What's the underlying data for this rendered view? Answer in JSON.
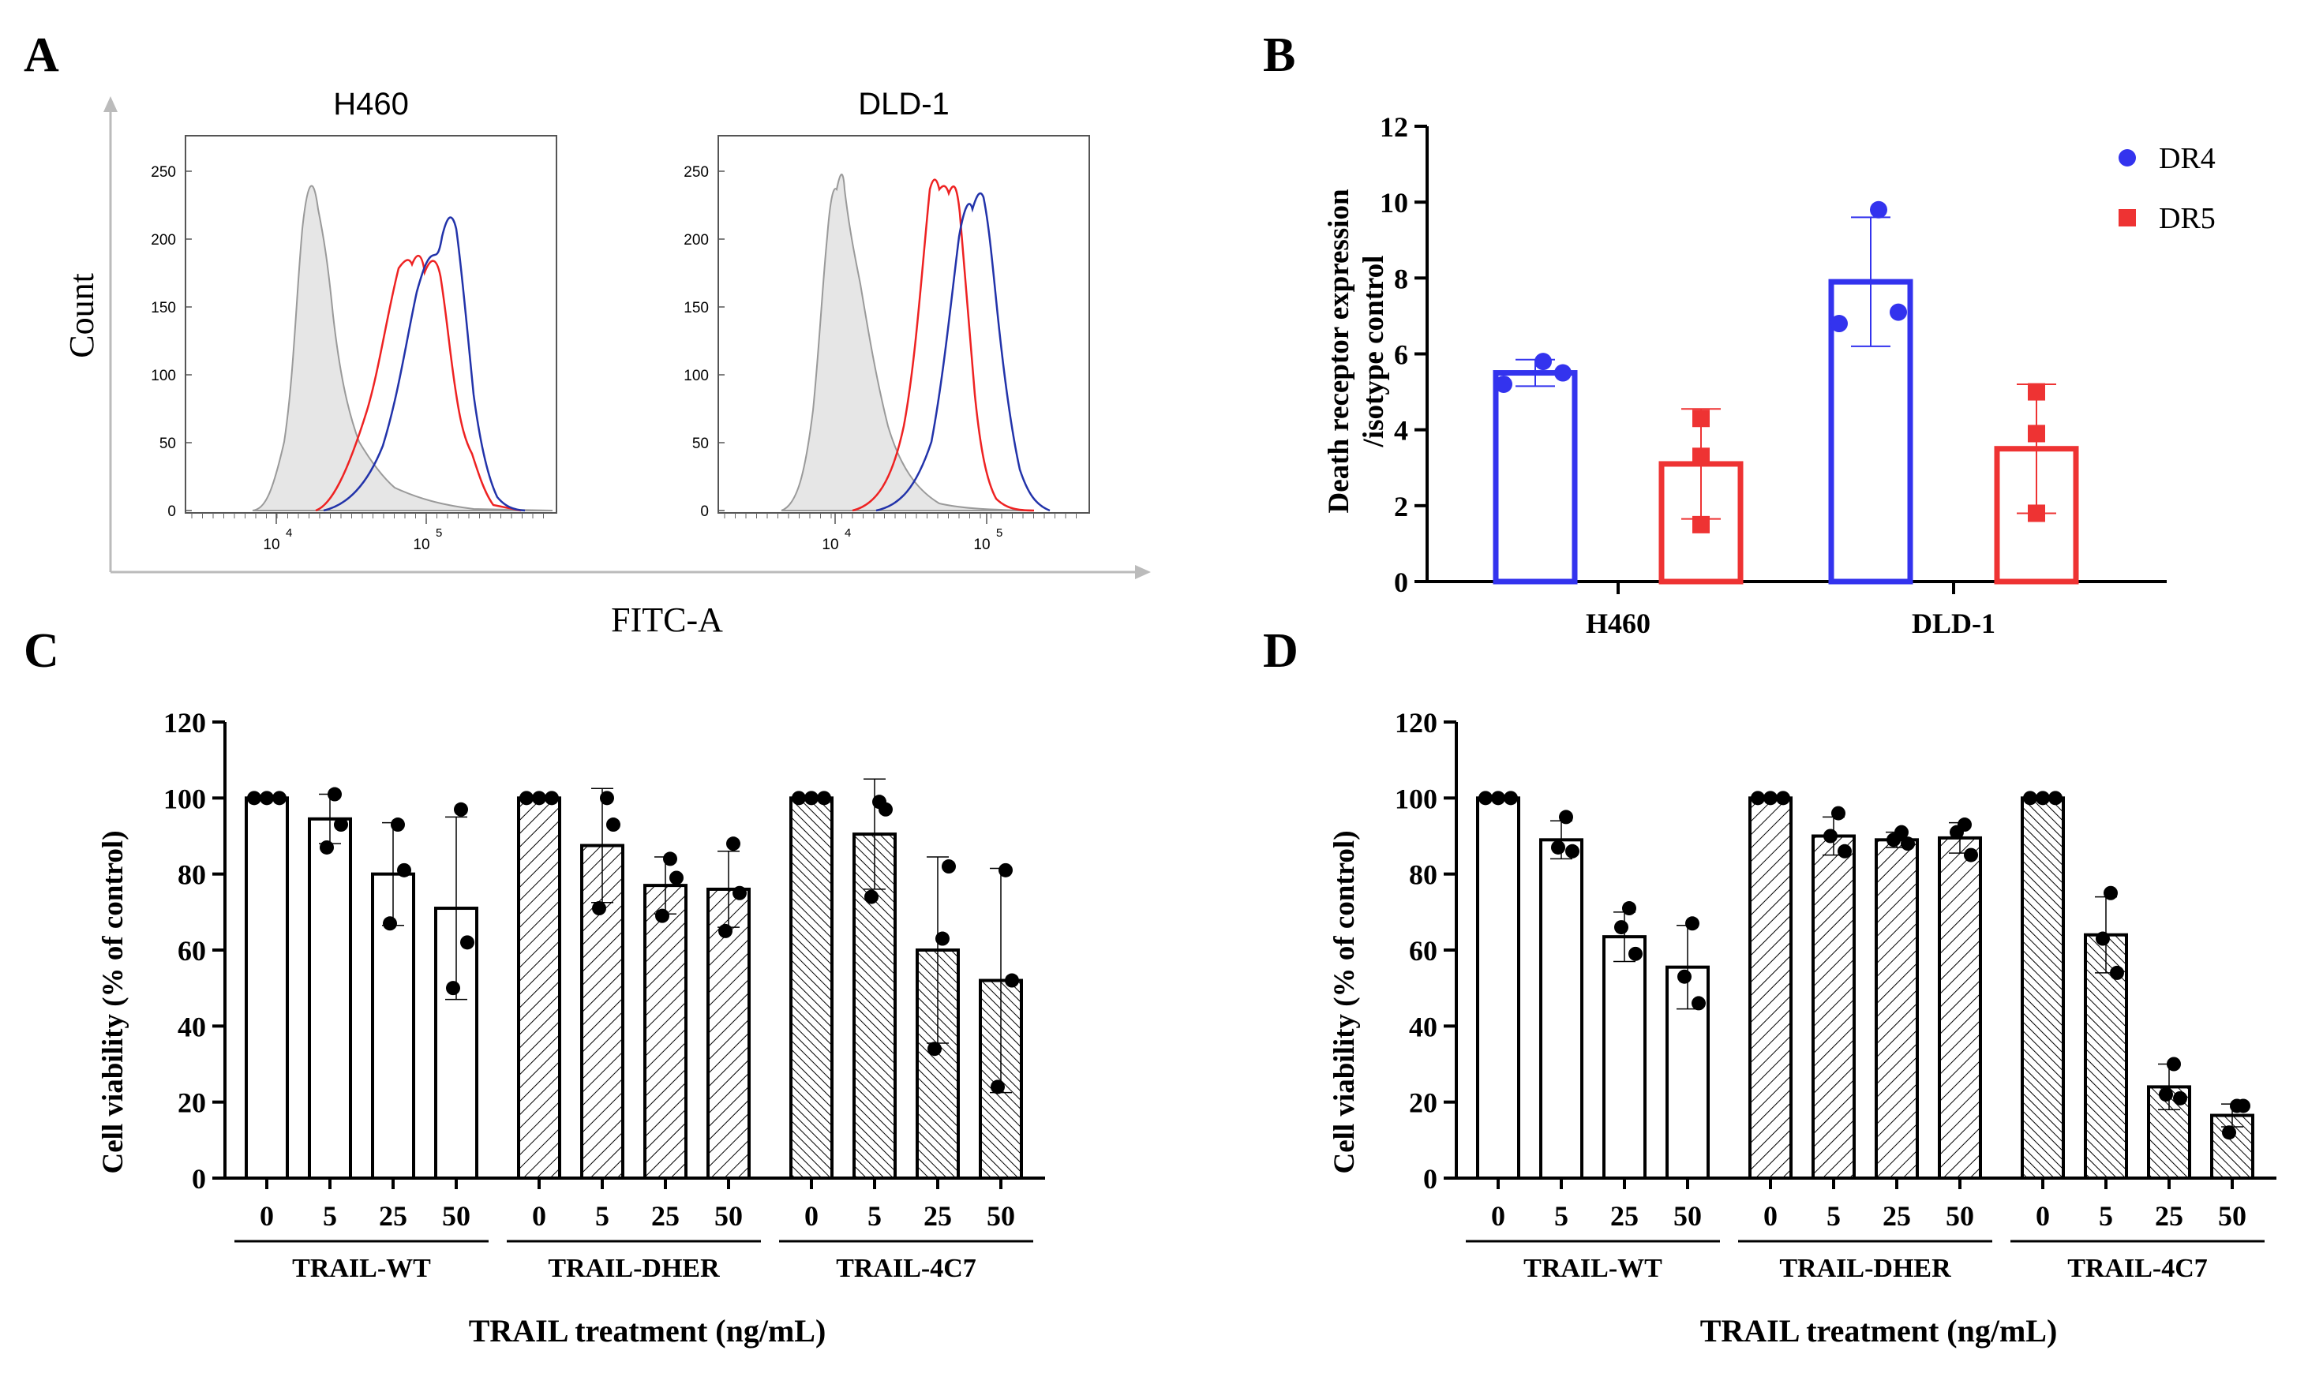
{
  "panels": {
    "A": "A",
    "B": "B",
    "C": "C",
    "D": "D"
  },
  "flow": {
    "ylabel": "Count",
    "xlabel": "FITC-A",
    "plots": [
      {
        "title": "H460",
        "yticks": [
          "250",
          "200",
          "150",
          "100",
          "50",
          "0"
        ],
        "xticks": [
          "10",
          "10"
        ],
        "xtick_exp": [
          "4",
          "5"
        ]
      },
      {
        "title": "DLD-1",
        "yticks": [
          "250",
          "200",
          "150",
          "100",
          "50",
          "0"
        ],
        "xticks": [
          "10",
          "10"
        ],
        "xtick_exp": [
          "4",
          "5"
        ]
      }
    ]
  },
  "chart_data": [
    {
      "id": "B",
      "type": "bar",
      "categories": [
        "H460",
        "DLD-1"
      ],
      "ylabel": "Death receptor expression /isotype control",
      "ylabel_lines": [
        "Death receptor expression",
        "/isotype control"
      ],
      "ylim": [
        0,
        12
      ],
      "yticks": [
        0,
        2,
        4,
        6,
        8,
        10,
        12
      ],
      "legend": "top-right",
      "series": [
        {
          "name": "DR4",
          "color": "#3333ee",
          "marker": "circle",
          "values": [
            5.5,
            7.9
          ],
          "sd": [
            0.35,
            1.7
          ],
          "points": [
            [
              5.2,
              5.8,
              5.5
            ],
            [
              6.8,
              9.8,
              7.1
            ]
          ]
        },
        {
          "name": "DR5",
          "color": "#ee3333",
          "marker": "square",
          "values": [
            3.1,
            3.5
          ],
          "sd": [
            1.45,
            1.7
          ],
          "points": [
            [
              1.5,
              3.3,
              4.3
            ],
            [
              1.8,
              3.9,
              5.0
            ]
          ]
        }
      ]
    },
    {
      "id": "C",
      "type": "bar",
      "ylabel": "Cell viability (% of control)",
      "xlabel": "TRAIL treatment (ng/mL)",
      "ylim": [
        0,
        120
      ],
      "yticks": [
        0,
        20,
        40,
        60,
        80,
        100,
        120
      ],
      "groups": [
        {
          "name": "TRAIL-WT",
          "pattern": "none",
          "doses": [
            "0",
            "5",
            "25",
            "50"
          ],
          "values": [
            100,
            94.5,
            80,
            71
          ],
          "sd": [
            0,
            6.5,
            13.5,
            24
          ],
          "points": [
            [
              100,
              100,
              100
            ],
            [
              101,
              93,
              87
            ],
            [
              93,
              81,
              67
            ],
            [
              97,
              62,
              50
            ]
          ]
        },
        {
          "name": "TRAIL-DHER",
          "pattern": "sparse",
          "doses": [
            "0",
            "5",
            "25",
            "50"
          ],
          "values": [
            100,
            87.5,
            77,
            76
          ],
          "sd": [
            0,
            15,
            7.5,
            10
          ],
          "points": [
            [
              100,
              100,
              100
            ],
            [
              100,
              93,
              71
            ],
            [
              84,
              79,
              69
            ],
            [
              88,
              75,
              65
            ]
          ]
        },
        {
          "name": "TRAIL-4C7",
          "pattern": "dense",
          "doses": [
            "0",
            "5",
            "25",
            "50"
          ],
          "values": [
            100,
            90.5,
            60,
            52
          ],
          "sd": [
            0,
            14.5,
            24.5,
            29.5
          ],
          "points": [
            [
              100,
              100,
              100
            ],
            [
              99,
              97,
              74
            ],
            [
              63,
              82,
              34
            ],
            [
              81,
              52,
              24
            ]
          ]
        }
      ]
    },
    {
      "id": "D",
      "type": "bar",
      "ylabel": "Cell viability (% of control)",
      "xlabel": "TRAIL treatment (ng/mL)",
      "ylim": [
        0,
        120
      ],
      "yticks": [
        0,
        20,
        40,
        60,
        80,
        100,
        120
      ],
      "groups": [
        {
          "name": "TRAIL-WT",
          "pattern": "none",
          "doses": [
            "0",
            "5",
            "25",
            "50"
          ],
          "values": [
            100,
            89,
            63.5,
            55.5
          ],
          "sd": [
            0,
            5,
            6.5,
            11
          ],
          "points": [
            [
              100,
              100,
              100
            ],
            [
              95,
              86,
              87
            ],
            [
              71,
              59,
              66
            ],
            [
              67,
              46,
              53
            ]
          ]
        },
        {
          "name": "TRAIL-DHER",
          "pattern": "sparse",
          "doses": [
            "0",
            "5",
            "25",
            "50"
          ],
          "values": [
            100,
            90,
            89,
            89.5
          ],
          "sd": [
            0,
            5,
            2,
            4
          ],
          "points": [
            [
              100,
              100,
              100
            ],
            [
              96,
              86,
              90
            ],
            [
              91,
              88,
              89
            ],
            [
              93,
              85,
              91
            ]
          ]
        },
        {
          "name": "TRAIL-4C7",
          "pattern": "dense",
          "doses": [
            "0",
            "5",
            "25",
            "50"
          ],
          "values": [
            100,
            64,
            24,
            16.5
          ],
          "sd": [
            0,
            10,
            6,
            3
          ],
          "points": [
            [
              100,
              100,
              100
            ],
            [
              75,
              54,
              63
            ],
            [
              30,
              21,
              22
            ],
            [
              19,
              19,
              12
            ]
          ]
        }
      ]
    }
  ]
}
